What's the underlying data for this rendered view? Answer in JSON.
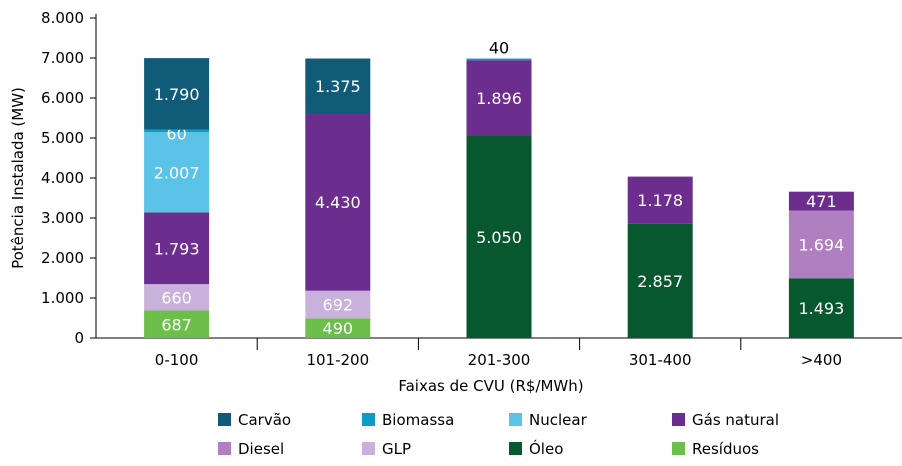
{
  "chart_data": {
    "type": "bar",
    "stacked": true,
    "xlabel": "Faixas de CVU (R$/MWh)",
    "ylabel": "Potência Instalada  (MW)",
    "ylim": [
      0,
      8000
    ],
    "yticks": [
      0,
      1000,
      2000,
      3000,
      4000,
      5000,
      6000,
      7000,
      8000
    ],
    "ytick_labels": [
      "0",
      "1.000",
      "2.000",
      "3.000",
      "4.000",
      "5.000",
      "6.000",
      "7.000",
      "8.000"
    ],
    "categories": [
      "0-100",
      "101-200",
      "201-300",
      "301-400",
      ">400"
    ],
    "legend_position": "bottom",
    "series": [
      {
        "name": "Resíduos",
        "color": "#6cbf4a",
        "values": [
          687,
          490,
          0,
          0,
          0
        ],
        "labels": [
          "687",
          "490",
          "",
          "",
          ""
        ]
      },
      {
        "name": "GLP",
        "color": "#c8b2dc",
        "values": [
          660,
          692,
          0,
          0,
          0
        ],
        "labels": [
          "660",
          "692",
          "",
          "",
          ""
        ]
      },
      {
        "name": "Óleo",
        "color": "#07582f",
        "values": [
          0,
          0,
          5050,
          2857,
          1493
        ],
        "labels": [
          "",
          "",
          "5.050",
          "2.857",
          "1.493"
        ]
      },
      {
        "name": "Diesel",
        "color": "#b07fc0",
        "values": [
          0,
          0,
          0,
          0,
          1694
        ],
        "labels": [
          "",
          "",
          "",
          "",
          "1.694"
        ]
      },
      {
        "name": "Gás natural",
        "color": "#6b2d8e",
        "values": [
          1793,
          4430,
          1896,
          1178,
          471
        ],
        "labels": [
          "1.793",
          "4.430",
          "1.896",
          "1.178",
          "471"
        ]
      },
      {
        "name": "Nuclear",
        "color": "#5bc3e8",
        "values": [
          2007,
          0,
          0,
          0,
          0
        ],
        "labels": [
          "2.007",
          "",
          "",
          "",
          ""
        ]
      },
      {
        "name": "Biomassa",
        "color": "#0b9cc7",
        "values": [
          60,
          0,
          40,
          0,
          0
        ],
        "labels": [
          "60",
          "",
          "40",
          "",
          ""
        ]
      },
      {
        "name": "Carvão",
        "color": "#0f5b78",
        "values": [
          1790,
          1375,
          0,
          0,
          0
        ],
        "labels": [
          "1.790",
          "1.375",
          "",
          "",
          ""
        ]
      }
    ],
    "legend": [
      {
        "name": "Carvão",
        "color": "#0f5b78"
      },
      {
        "name": "Biomassa",
        "color": "#0b9cc7"
      },
      {
        "name": "Nuclear",
        "color": "#5bc3e8"
      },
      {
        "name": "Gás natural",
        "color": "#6b2d8e"
      },
      {
        "name": "Diesel",
        "color": "#b07fc0"
      },
      {
        "name": "GLP",
        "color": "#c8b2dc"
      },
      {
        "name": "Óleo",
        "color": "#07582f"
      },
      {
        "name": "Resíduos",
        "color": "#6cbf4a"
      }
    ]
  }
}
